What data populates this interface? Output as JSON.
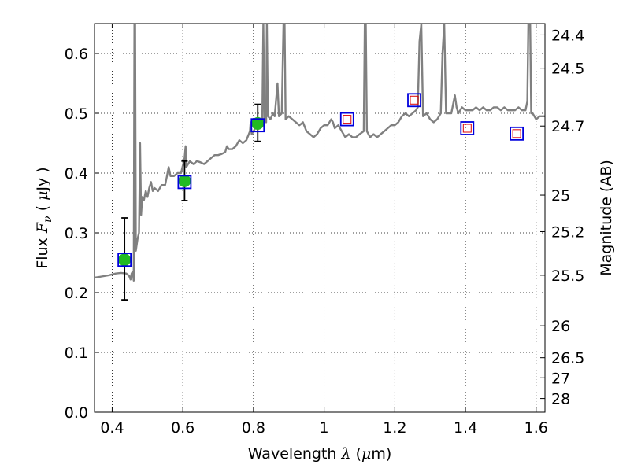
{
  "chart_data": {
    "type": "line",
    "xlabel": {
      "prefix": "Wavelength  ",
      "symbol": "λ",
      "suffix": " (",
      "unit_symbol": "μ",
      "unit_suffix": "m)"
    },
    "ylabel": {
      "prefix": "Flux  ",
      "symbol": "F",
      "subscript": "ν",
      "mid": "  ( ",
      "unit_symbol": "μ",
      "unit_suffix": "Jy )"
    },
    "y2label": "Magnitude (AB)",
    "xlim": [
      0.35,
      1.625
    ],
    "ylim": [
      0.0,
      0.65
    ],
    "grid": true,
    "x_ticks": [
      {
        "value": 0.4,
        "label": "0.4"
      },
      {
        "value": 0.6,
        "label": "0.6"
      },
      {
        "value": 0.8,
        "label": "0.8"
      },
      {
        "value": 1.0,
        "label": "1"
      },
      {
        "value": 1.2,
        "label": "1.2"
      },
      {
        "value": 1.4,
        "label": "1.4"
      },
      {
        "value": 1.6,
        "label": "1.6"
      }
    ],
    "y_ticks": [
      {
        "value": 0.0,
        "label": "0.0"
      },
      {
        "value": 0.1,
        "label": "0.1"
      },
      {
        "value": 0.2,
        "label": "0.2"
      },
      {
        "value": 0.3,
        "label": "0.3"
      },
      {
        "value": 0.4,
        "label": "0.4"
      },
      {
        "value": 0.5,
        "label": "0.5"
      },
      {
        "value": 0.6,
        "label": "0.6"
      }
    ],
    "y2_ticks": [
      {
        "value": 24.4,
        "label": "24.4"
      },
      {
        "value": 24.5,
        "label": "24.5"
      },
      {
        "value": 24.7,
        "label": "24.7"
      },
      {
        "value": 25.0,
        "label": "25"
      },
      {
        "value": 25.2,
        "label": "25.2"
      },
      {
        "value": 25.5,
        "label": "25.5"
      },
      {
        "value": 26.0,
        "label": "26"
      },
      {
        "value": 26.5,
        "label": "26.5"
      },
      {
        "value": 27.0,
        "label": "27"
      },
      {
        "value": 28.0,
        "label": "28"
      }
    ],
    "series": [
      {
        "kind": "line",
        "color": "#808080",
        "points": [
          [
            0.35,
            0.225
          ],
          [
            0.37,
            0.227
          ],
          [
            0.39,
            0.229
          ],
          [
            0.41,
            0.232
          ],
          [
            0.425,
            0.233
          ],
          [
            0.44,
            0.232
          ],
          [
            0.448,
            0.228
          ],
          [
            0.452,
            0.222
          ],
          [
            0.455,
            0.232
          ],
          [
            0.458,
            0.235
          ],
          [
            0.461,
            0.22
          ],
          [
            0.463,
            0.65
          ],
          [
            0.465,
            0.65
          ],
          [
            0.467,
            0.27
          ],
          [
            0.472,
            0.29
          ],
          [
            0.476,
            0.3
          ],
          [
            0.479,
            0.45
          ],
          [
            0.482,
            0.33
          ],
          [
            0.485,
            0.36
          ],
          [
            0.49,
            0.355
          ],
          [
            0.495,
            0.37
          ],
          [
            0.5,
            0.36
          ],
          [
            0.505,
            0.375
          ],
          [
            0.51,
            0.385
          ],
          [
            0.515,
            0.37
          ],
          [
            0.52,
            0.375
          ],
          [
            0.53,
            0.37
          ],
          [
            0.54,
            0.38
          ],
          [
            0.55,
            0.38
          ],
          [
            0.555,
            0.395
          ],
          [
            0.56,
            0.41
          ],
          [
            0.565,
            0.395
          ],
          [
            0.575,
            0.395
          ],
          [
            0.585,
            0.4
          ],
          [
            0.595,
            0.4
          ],
          [
            0.605,
            0.425
          ],
          [
            0.608,
            0.445
          ],
          [
            0.61,
            0.41
          ],
          [
            0.62,
            0.42
          ],
          [
            0.63,
            0.415
          ],
          [
            0.64,
            0.42
          ],
          [
            0.65,
            0.418
          ],
          [
            0.66,
            0.415
          ],
          [
            0.67,
            0.42
          ],
          [
            0.68,
            0.425
          ],
          [
            0.69,
            0.43
          ],
          [
            0.7,
            0.43
          ],
          [
            0.71,
            0.432
          ],
          [
            0.72,
            0.435
          ],
          [
            0.725,
            0.445
          ],
          [
            0.73,
            0.44
          ],
          [
            0.74,
            0.44
          ],
          [
            0.75,
            0.445
          ],
          [
            0.76,
            0.455
          ],
          [
            0.77,
            0.45
          ],
          [
            0.78,
            0.455
          ],
          [
            0.79,
            0.47
          ],
          [
            0.792,
            0.485
          ],
          [
            0.795,
            0.465
          ],
          [
            0.8,
            0.47
          ],
          [
            0.81,
            0.48
          ],
          [
            0.815,
            0.475
          ],
          [
            0.82,
            0.48
          ],
          [
            0.825,
            0.49
          ],
          [
            0.828,
            0.65
          ],
          [
            0.831,
            0.49
          ],
          [
            0.836,
            0.485
          ],
          [
            0.838,
            0.65
          ],
          [
            0.841,
            0.495
          ],
          [
            0.848,
            0.49
          ],
          [
            0.855,
            0.5
          ],
          [
            0.86,
            0.495
          ],
          [
            0.868,
            0.55
          ],
          [
            0.872,
            0.495
          ],
          [
            0.88,
            0.5
          ],
          [
            0.885,
            0.65
          ],
          [
            0.888,
            0.65
          ],
          [
            0.891,
            0.49
          ],
          [
            0.9,
            0.495
          ],
          [
            0.91,
            0.49
          ],
          [
            0.92,
            0.485
          ],
          [
            0.93,
            0.48
          ],
          [
            0.94,
            0.485
          ],
          [
            0.95,
            0.47
          ],
          [
            0.96,
            0.465
          ],
          [
            0.97,
            0.46
          ],
          [
            0.98,
            0.465
          ],
          [
            0.99,
            0.475
          ],
          [
            1.0,
            0.48
          ],
          [
            1.01,
            0.48
          ],
          [
            1.02,
            0.49
          ],
          [
            1.025,
            0.485
          ],
          [
            1.03,
            0.475
          ],
          [
            1.04,
            0.48
          ],
          [
            1.05,
            0.47
          ],
          [
            1.06,
            0.46
          ],
          [
            1.07,
            0.465
          ],
          [
            1.08,
            0.46
          ],
          [
            1.09,
            0.46
          ],
          [
            1.1,
            0.465
          ],
          [
            1.112,
            0.47
          ],
          [
            1.115,
            0.65
          ],
          [
            1.118,
            0.65
          ],
          [
            1.121,
            0.47
          ],
          [
            1.13,
            0.46
          ],
          [
            1.14,
            0.465
          ],
          [
            1.15,
            0.46
          ],
          [
            1.16,
            0.465
          ],
          [
            1.17,
            0.47
          ],
          [
            1.18,
            0.475
          ],
          [
            1.19,
            0.48
          ],
          [
            1.2,
            0.48
          ],
          [
            1.21,
            0.485
          ],
          [
            1.22,
            0.495
          ],
          [
            1.23,
            0.5
          ],
          [
            1.24,
            0.495
          ],
          [
            1.25,
            0.5
          ],
          [
            1.26,
            0.505
          ],
          [
            1.265,
            0.51
          ],
          [
            1.27,
            0.62
          ],
          [
            1.275,
            0.65
          ],
          [
            1.28,
            0.495
          ],
          [
            1.29,
            0.5
          ],
          [
            1.3,
            0.49
          ],
          [
            1.31,
            0.485
          ],
          [
            1.32,
            0.49
          ],
          [
            1.33,
            0.5
          ],
          [
            1.335,
            0.6
          ],
          [
            1.34,
            0.65
          ],
          [
            1.345,
            0.5
          ],
          [
            1.36,
            0.5
          ],
          [
            1.37,
            0.53
          ],
          [
            1.375,
            0.51
          ],
          [
            1.38,
            0.5
          ],
          [
            1.39,
            0.51
          ],
          [
            1.4,
            0.505
          ],
          [
            1.41,
            0.505
          ],
          [
            1.42,
            0.505
          ],
          [
            1.43,
            0.51
          ],
          [
            1.44,
            0.505
          ],
          [
            1.45,
            0.51
          ],
          [
            1.46,
            0.505
          ],
          [
            1.47,
            0.505
          ],
          [
            1.48,
            0.51
          ],
          [
            1.49,
            0.51
          ],
          [
            1.5,
            0.505
          ],
          [
            1.51,
            0.51
          ],
          [
            1.52,
            0.505
          ],
          [
            1.53,
            0.505
          ],
          [
            1.54,
            0.505
          ],
          [
            1.55,
            0.51
          ],
          [
            1.56,
            0.505
          ],
          [
            1.57,
            0.505
          ],
          [
            1.575,
            0.52
          ],
          [
            1.578,
            0.65
          ],
          [
            1.583,
            0.65
          ],
          [
            1.586,
            0.5
          ],
          [
            1.59,
            0.5
          ],
          [
            1.6,
            0.49
          ],
          [
            1.61,
            0.495
          ],
          [
            1.625,
            0.495
          ]
        ]
      },
      {
        "kind": "errorbar",
        "color": "#22bb22",
        "points": [
          {
            "x": 0.435,
            "y": 0.255,
            "ylo": 0.188,
            "yhi": 0.325
          },
          {
            "x": 0.605,
            "y": 0.387,
            "ylo": 0.354,
            "yhi": 0.42
          },
          {
            "x": 0.812,
            "y": 0.483,
            "ylo": 0.453,
            "yhi": 0.515
          }
        ]
      },
      {
        "kind": "model-squares",
        "color": "#0000dd",
        "points": [
          {
            "x": 0.435,
            "y": 0.255
          },
          {
            "x": 0.605,
            "y": 0.385
          },
          {
            "x": 0.812,
            "y": 0.48
          },
          {
            "x": 1.065,
            "y": 0.49
          },
          {
            "x": 1.255,
            "y": 0.522
          },
          {
            "x": 1.405,
            "y": 0.475
          },
          {
            "x": 1.545,
            "y": 0.466
          }
        ]
      },
      {
        "kind": "inner-squares",
        "color": "#dd0000",
        "points": [
          {
            "x": 1.065,
            "y": 0.49
          },
          {
            "x": 1.255,
            "y": 0.522
          },
          {
            "x": 1.405,
            "y": 0.475
          },
          {
            "x": 1.545,
            "y": 0.466
          }
        ]
      }
    ]
  }
}
